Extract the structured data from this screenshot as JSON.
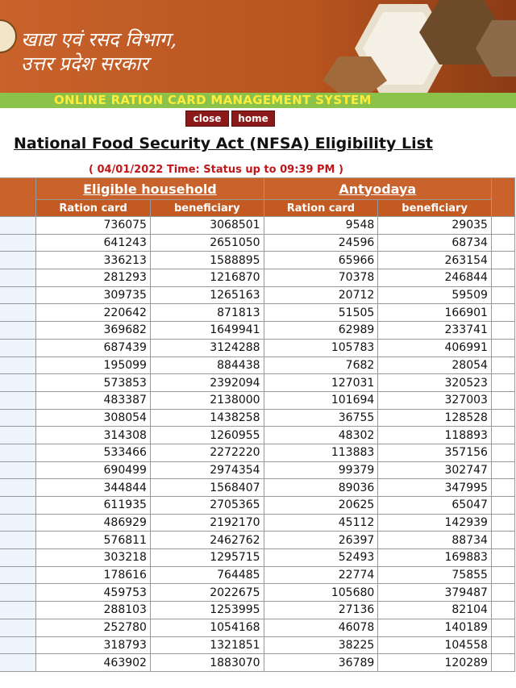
{
  "header": {
    "department_line1": "खाद्य एवं रसद विभाग,",
    "department_line2": "उत्तर प्रदेश सरकार",
    "system_name": "ONLINE RATION CARD MANAGEMENT SYSTEM"
  },
  "buttons": [
    "close",
    "home"
  ],
  "title": "National Food Security Act (NFSA) Eligibility List",
  "date_line": "( 04/01/2022 Time: Status up to 09:39 PM )",
  "table": {
    "group_headers": [
      "Eligible household",
      "Antyodaya"
    ],
    "sub_headers": [
      "Ration card",
      "beneficiary",
      "Ration card",
      "beneficiary"
    ],
    "rows": [
      [
        736075,
        3068501,
        9548,
        29035
      ],
      [
        641243,
        2651050,
        24596,
        68734
      ],
      [
        336213,
        1588895,
        65966,
        263154
      ],
      [
        281293,
        1216870,
        70378,
        246844
      ],
      [
        309735,
        1265163,
        20712,
        59509
      ],
      [
        220642,
        871813,
        51505,
        166901
      ],
      [
        369682,
        1649941,
        62989,
        233741
      ],
      [
        687439,
        3124288,
        105783,
        406991
      ],
      [
        195099,
        884438,
        7682,
        28054
      ],
      [
        573853,
        2392094,
        127031,
        320523
      ],
      [
        483387,
        2138000,
        101694,
        327003
      ],
      [
        308054,
        1438258,
        36755,
        128528
      ],
      [
        314308,
        1260955,
        48302,
        118893
      ],
      [
        533466,
        2272220,
        113883,
        357156
      ],
      [
        690499,
        2974354,
        99379,
        302747
      ],
      [
        344844,
        1568407,
        89036,
        347995
      ],
      [
        611935,
        2705365,
        20625,
        65047
      ],
      [
        486929,
        2192170,
        45112,
        142939
      ],
      [
        576811,
        2462762,
        26397,
        88734
      ],
      [
        303218,
        1295715,
        52493,
        169883
      ],
      [
        178616,
        764485,
        22774,
        75855
      ],
      [
        459753,
        2022675,
        105680,
        379487
      ],
      [
        288103,
        1253995,
        27136,
        82104
      ],
      [
        252780,
        1054168,
        46078,
        140189
      ],
      [
        318793,
        1321851,
        38225,
        104558
      ],
      [
        463902,
        1883070,
        36789,
        120289
      ]
    ]
  }
}
